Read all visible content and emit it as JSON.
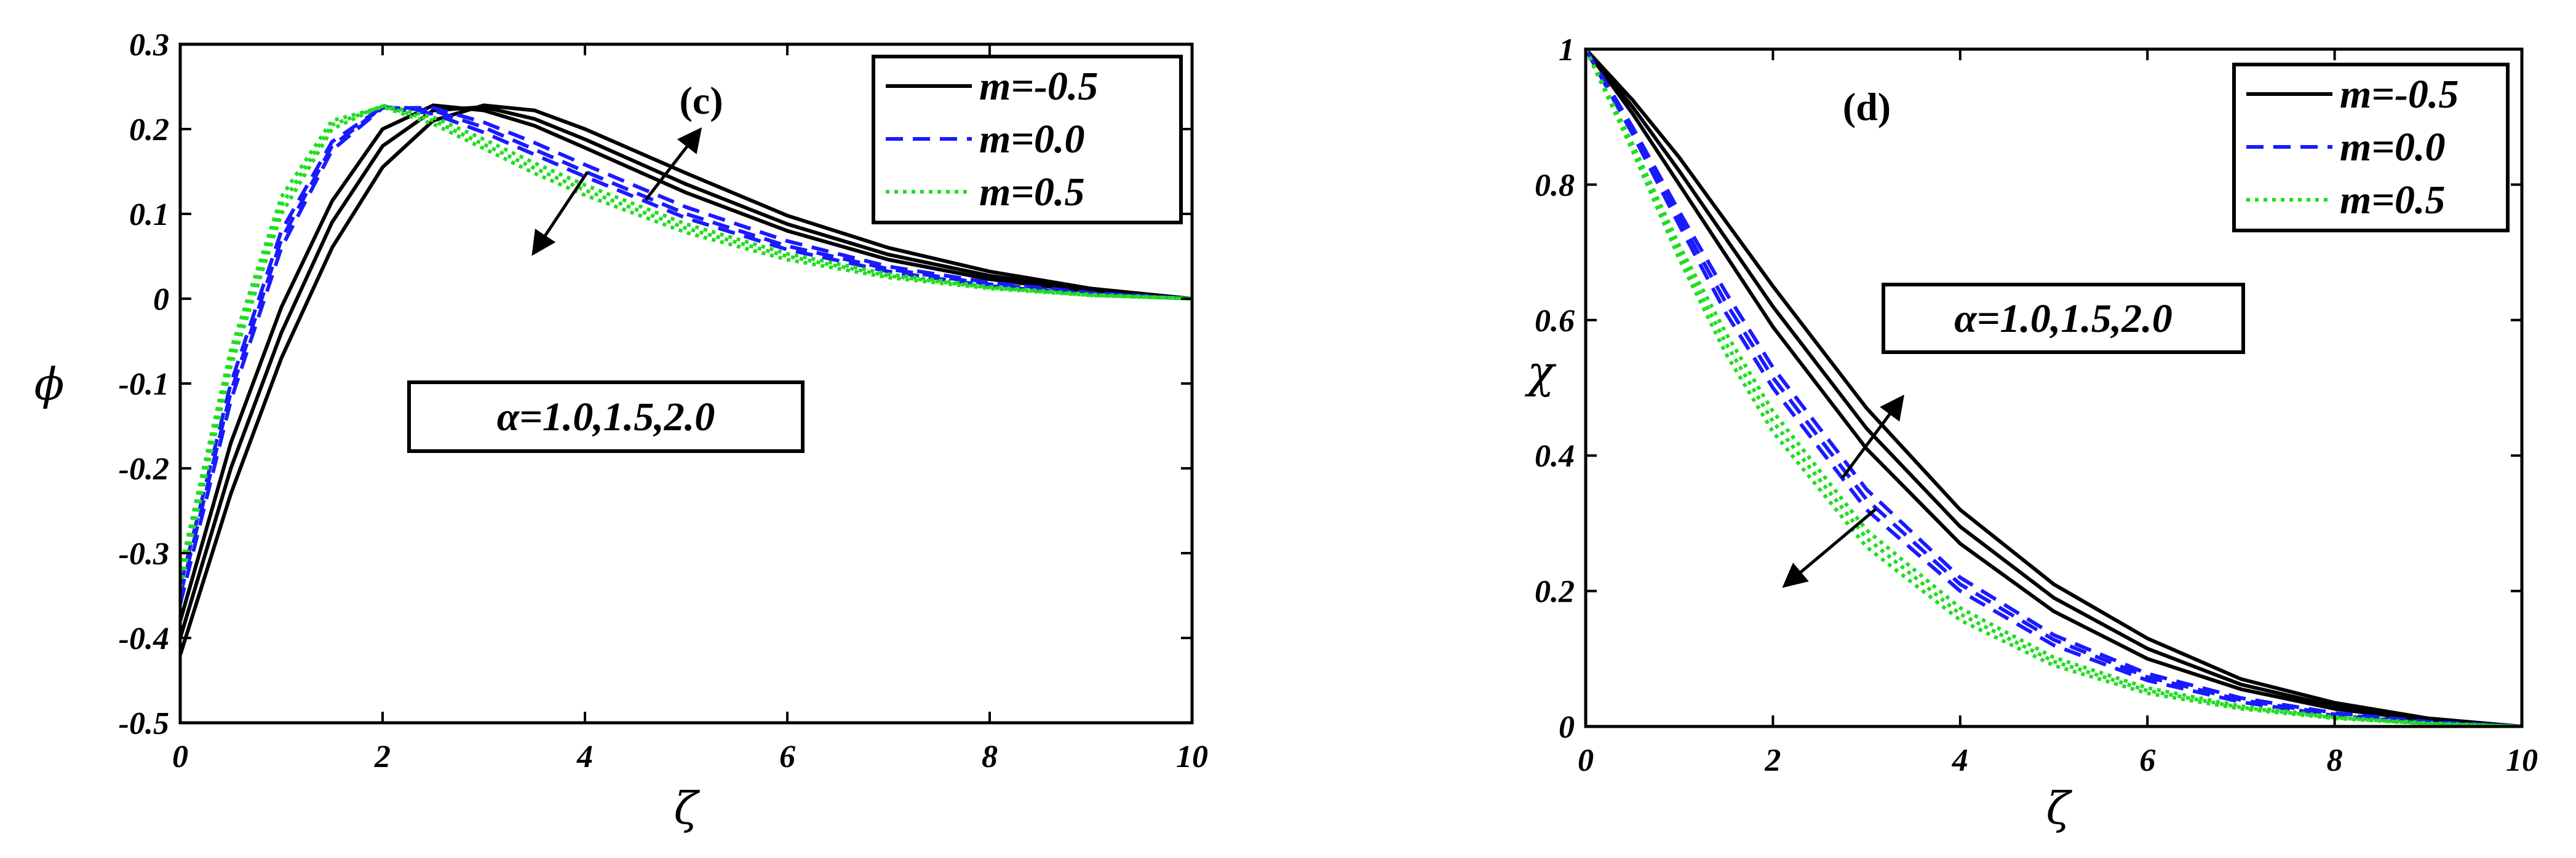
{
  "chart_data": [
    {
      "type": "line",
      "panel_tag": "(c)",
      "ylabel": "ϕ",
      "xlabel": "ζ",
      "xlim": [
        0,
        10
      ],
      "ylim": [
        -0.5,
        0.3
      ],
      "xticks": [
        "0",
        "2",
        "4",
        "6",
        "8",
        "10"
      ],
      "yticks": [
        "0.3",
        "0.2",
        "0.1",
        "0",
        "-0.1",
        "-0.2",
        "-0.3",
        "-0.4",
        "-0.5"
      ],
      "parameter_label": "α=1.0,1.5,2.0",
      "legend": [
        {
          "label": "m=-0.5",
          "color": "#000000",
          "style": "solid"
        },
        {
          "label": "m=0.0",
          "color": "#1a1aff",
          "style": "dashed"
        },
        {
          "label": "m=0.5",
          "color": "#22dd22",
          "style": "dotted"
        }
      ],
      "legend_position": "top-right",
      "series": [
        {
          "group": "m=-0.5",
          "color": "#000000",
          "style": "solid",
          "x": [
            0,
            0.5,
            1,
            1.5,
            2,
            2.5,
            3,
            3.5,
            4,
            5,
            6,
            7,
            8,
            9,
            10
          ],
          "y": [
            -0.42,
            -0.23,
            -0.07,
            0.06,
            0.155,
            0.21,
            0.228,
            0.222,
            0.2,
            0.148,
            0.098,
            0.06,
            0.032,
            0.012,
            0
          ]
        },
        {
          "group": "m=-0.5",
          "color": "#000000",
          "style": "solid",
          "x": [
            0,
            0.5,
            1,
            1.5,
            2,
            2.5,
            3,
            3.5,
            4,
            5,
            6,
            7,
            8,
            9,
            10
          ],
          "y": [
            -0.4,
            -0.2,
            -0.04,
            0.09,
            0.18,
            0.222,
            0.226,
            0.212,
            0.188,
            0.135,
            0.088,
            0.052,
            0.027,
            0.01,
            0
          ]
        },
        {
          "group": "m=-0.5",
          "color": "#000000",
          "style": "solid",
          "x": [
            0,
            0.5,
            1,
            1.5,
            2,
            2.5,
            3,
            3.5,
            4,
            5,
            6,
            7,
            8,
            9,
            10
          ],
          "y": [
            -0.38,
            -0.17,
            -0.01,
            0.115,
            0.2,
            0.228,
            0.222,
            0.204,
            0.178,
            0.125,
            0.08,
            0.046,
            0.023,
            0.008,
            0
          ]
        },
        {
          "group": "m=0.0",
          "color": "#1a1aff",
          "style": "dashed",
          "x": [
            0,
            0.5,
            1,
            1.5,
            2,
            2.5,
            3,
            3.5,
            4,
            5,
            6,
            7,
            8,
            9,
            10
          ],
          "y": [
            -0.36,
            -0.12,
            0.06,
            0.175,
            0.225,
            0.225,
            0.208,
            0.184,
            0.158,
            0.108,
            0.068,
            0.038,
            0.019,
            0.007,
            0
          ]
        },
        {
          "group": "m=0.0",
          "color": "#1a1aff",
          "style": "dashed",
          "x": [
            0,
            0.5,
            1,
            1.5,
            2,
            2.5,
            3,
            3.5,
            4,
            5,
            6,
            7,
            8,
            9,
            10
          ],
          "y": [
            -0.35,
            -0.11,
            0.07,
            0.18,
            0.226,
            0.222,
            0.202,
            0.176,
            0.15,
            0.1,
            0.062,
            0.035,
            0.017,
            0.006,
            0
          ]
        },
        {
          "group": "m=0.0",
          "color": "#1a1aff",
          "style": "dashed",
          "x": [
            0,
            0.5,
            1,
            1.5,
            2,
            2.5,
            3,
            3.5,
            4,
            5,
            6,
            7,
            8,
            9,
            10
          ],
          "y": [
            -0.34,
            -0.1,
            0.08,
            0.185,
            0.226,
            0.218,
            0.196,
            0.17,
            0.144,
            0.095,
            0.058,
            0.032,
            0.015,
            0.005,
            0
          ]
        },
        {
          "group": "m=0.5",
          "color": "#22dd22",
          "style": "dotted",
          "x": [
            0,
            0.5,
            1,
            1.5,
            2,
            2.5,
            3,
            3.5,
            4,
            5,
            6,
            7,
            8,
            9,
            10
          ],
          "y": [
            -0.34,
            -0.08,
            0.1,
            0.2,
            0.228,
            0.214,
            0.188,
            0.16,
            0.134,
            0.088,
            0.053,
            0.029,
            0.014,
            0.005,
            0
          ]
        },
        {
          "group": "m=0.5",
          "color": "#22dd22",
          "style": "dotted",
          "x": [
            0,
            0.5,
            1,
            1.5,
            2,
            2.5,
            3,
            3.5,
            4,
            5,
            6,
            7,
            8,
            9,
            10
          ],
          "y": [
            -0.33,
            -0.07,
            0.11,
            0.205,
            0.227,
            0.21,
            0.182,
            0.154,
            0.128,
            0.083,
            0.05,
            0.027,
            0.013,
            0.004,
            0
          ]
        },
        {
          "group": "m=0.5",
          "color": "#22dd22",
          "style": "dotted",
          "x": [
            0,
            0.5,
            1,
            1.5,
            2,
            2.5,
            3,
            3.5,
            4,
            5,
            6,
            7,
            8,
            9,
            10
          ],
          "y": [
            -0.32,
            -0.06,
            0.12,
            0.21,
            0.226,
            0.206,
            0.177,
            0.148,
            0.122,
            0.078,
            0.046,
            0.025,
            0.012,
            0.004,
            0
          ]
        }
      ]
    },
    {
      "type": "line",
      "panel_tag": "(d)",
      "ylabel": "χ",
      "xlabel": "ζ",
      "xlim": [
        0,
        10
      ],
      "ylim": [
        0,
        1
      ],
      "xticks": [
        "0",
        "2",
        "4",
        "6",
        "8",
        "10"
      ],
      "yticks": [
        "1",
        "0.8",
        "0.6",
        "0.4",
        "0.2",
        "0"
      ],
      "parameter_label": "α=1.0,1.5,2.0",
      "legend": [
        {
          "label": "m=-0.5",
          "color": "#000000",
          "style": "solid"
        },
        {
          "label": "m=0.0",
          "color": "#1a1aff",
          "style": "dashed"
        },
        {
          "label": "m=0.5",
          "color": "#22dd22",
          "style": "dotted"
        }
      ],
      "legend_position": "top-right",
      "series": [
        {
          "group": "m=-0.5",
          "color": "#000000",
          "style": "solid",
          "x": [
            0,
            0.5,
            1,
            1.5,
            2,
            3,
            4,
            5,
            6,
            7,
            8,
            9,
            10
          ],
          "y": [
            1,
            0.925,
            0.84,
            0.745,
            0.65,
            0.47,
            0.32,
            0.21,
            0.13,
            0.07,
            0.035,
            0.012,
            0
          ]
        },
        {
          "group": "m=-0.5",
          "color": "#000000",
          "style": "solid",
          "x": [
            0,
            0.5,
            1,
            1.5,
            2,
            3,
            4,
            5,
            6,
            7,
            8,
            9,
            10
          ],
          "y": [
            1,
            0.915,
            0.82,
            0.72,
            0.62,
            0.44,
            0.295,
            0.19,
            0.115,
            0.062,
            0.03,
            0.01,
            0
          ]
        },
        {
          "group": "m=-0.5",
          "color": "#000000",
          "style": "solid",
          "x": [
            0,
            0.5,
            1,
            1.5,
            2,
            3,
            4,
            5,
            6,
            7,
            8,
            9,
            10
          ],
          "y": [
            1,
            0.905,
            0.8,
            0.695,
            0.59,
            0.41,
            0.27,
            0.17,
            0.1,
            0.055,
            0.026,
            0.009,
            0
          ]
        },
        {
          "group": "m=0.0",
          "color": "#1a1aff",
          "style": "dashed",
          "x": [
            0,
            0.5,
            1,
            1.5,
            2,
            3,
            4,
            5,
            6,
            7,
            8,
            9,
            10
          ],
          "y": [
            1,
            0.885,
            0.76,
            0.64,
            0.53,
            0.35,
            0.22,
            0.135,
            0.078,
            0.042,
            0.02,
            0.007,
            0
          ]
        },
        {
          "group": "m=0.0",
          "color": "#1a1aff",
          "style": "dashed",
          "x": [
            0,
            0.5,
            1,
            1.5,
            2,
            3,
            4,
            5,
            6,
            7,
            8,
            9,
            10
          ],
          "y": [
            1,
            0.88,
            0.75,
            0.625,
            0.515,
            0.335,
            0.21,
            0.128,
            0.073,
            0.039,
            0.018,
            0.006,
            0
          ]
        },
        {
          "group": "m=0.0",
          "color": "#1a1aff",
          "style": "dashed",
          "x": [
            0,
            0.5,
            1,
            1.5,
            2,
            3,
            4,
            5,
            6,
            7,
            8,
            9,
            10
          ],
          "y": [
            1,
            0.875,
            0.74,
            0.61,
            0.5,
            0.32,
            0.2,
            0.12,
            0.068,
            0.036,
            0.016,
            0.005,
            0
          ]
        },
        {
          "group": "m=0.5",
          "color": "#22dd22",
          "style": "dotted",
          "x": [
            0,
            0.5,
            1,
            1.5,
            2,
            3,
            4,
            5,
            6,
            7,
            8,
            9,
            10
          ],
          "y": [
            1,
            0.86,
            0.71,
            0.58,
            0.465,
            0.29,
            0.175,
            0.102,
            0.057,
            0.03,
            0.014,
            0.005,
            0
          ]
        },
        {
          "group": "m=0.5",
          "color": "#22dd22",
          "style": "dotted",
          "x": [
            0,
            0.5,
            1,
            1.5,
            2,
            3,
            4,
            5,
            6,
            7,
            8,
            9,
            10
          ],
          "y": [
            1,
            0.855,
            0.7,
            0.565,
            0.45,
            0.278,
            0.166,
            0.096,
            0.053,
            0.028,
            0.013,
            0.004,
            0
          ]
        },
        {
          "group": "m=0.5",
          "color": "#22dd22",
          "style": "dotted",
          "x": [
            0,
            0.5,
            1,
            1.5,
            2,
            3,
            4,
            5,
            6,
            7,
            8,
            9,
            10
          ],
          "y": [
            1,
            0.85,
            0.69,
            0.55,
            0.435,
            0.265,
            0.157,
            0.09,
            0.049,
            0.026,
            0.012,
            0.004,
            0
          ]
        }
      ]
    }
  ]
}
